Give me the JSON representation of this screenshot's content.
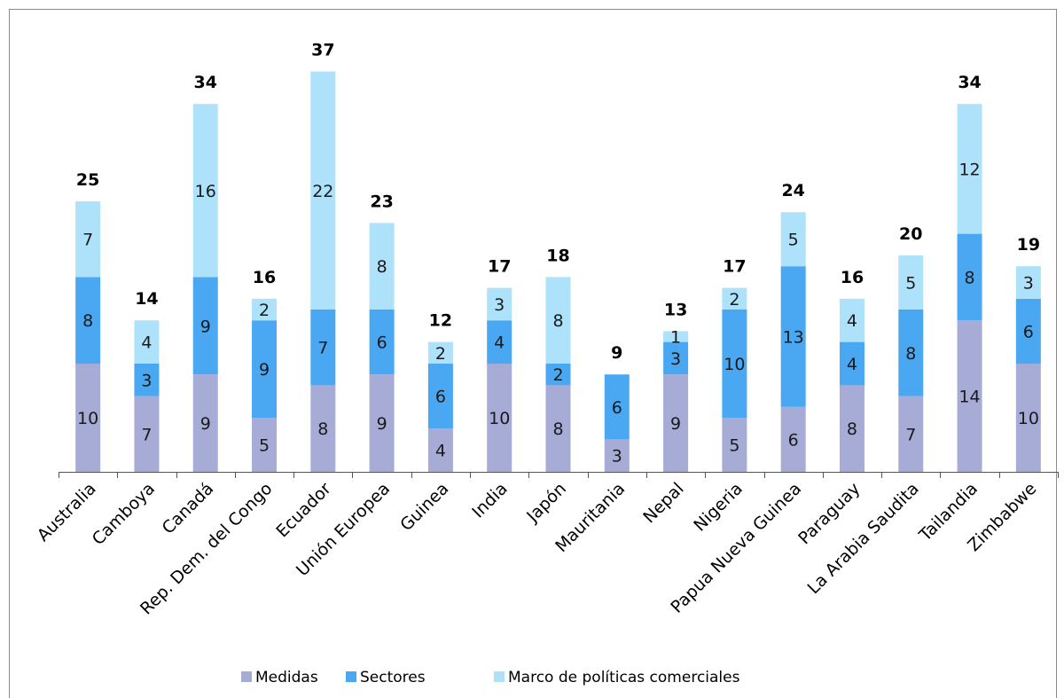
{
  "chart_data": {
    "type": "bar",
    "stacked": true,
    "categories": [
      "Australia",
      "Camboya",
      "Canadá",
      "Rep. Dem. del Congo",
      "Ecuador",
      "Unión Europea",
      "Guinea",
      "India",
      "Japón",
      "Mauritania",
      "Nepal",
      "Nigeria",
      "Papua Nueva Guinea",
      "Paraguay",
      "La Arabia Saudita",
      "Tailandia",
      "Zimbabwe"
    ],
    "series": [
      {
        "name": "Medidas",
        "color": "#a6acd6",
        "values": [
          10,
          7,
          9,
          5,
          8,
          9,
          4,
          10,
          8,
          3,
          9,
          5,
          6,
          8,
          7,
          14,
          10
        ]
      },
      {
        "name": "Sectores",
        "color": "#4aa8f2",
        "values": [
          8,
          3,
          9,
          9,
          7,
          6,
          6,
          4,
          2,
          6,
          3,
          10,
          13,
          4,
          8,
          8,
          6
        ]
      },
      {
        "name": "Marco de políticas comerciales",
        "color": "#aee2fb",
        "values": [
          7,
          4,
          16,
          2,
          22,
          8,
          2,
          3,
          8,
          0,
          1,
          2,
          5,
          4,
          5,
          12,
          3
        ]
      }
    ],
    "totals": [
      25,
      14,
      34,
      16,
      37,
      23,
      12,
      17,
      18,
      9,
      13,
      17,
      24,
      16,
      20,
      34,
      19
    ],
    "ylim": [
      0,
      37
    ],
    "title": "",
    "xlabel": "",
    "ylabel": "",
    "grid": false,
    "legend": "bottom"
  }
}
